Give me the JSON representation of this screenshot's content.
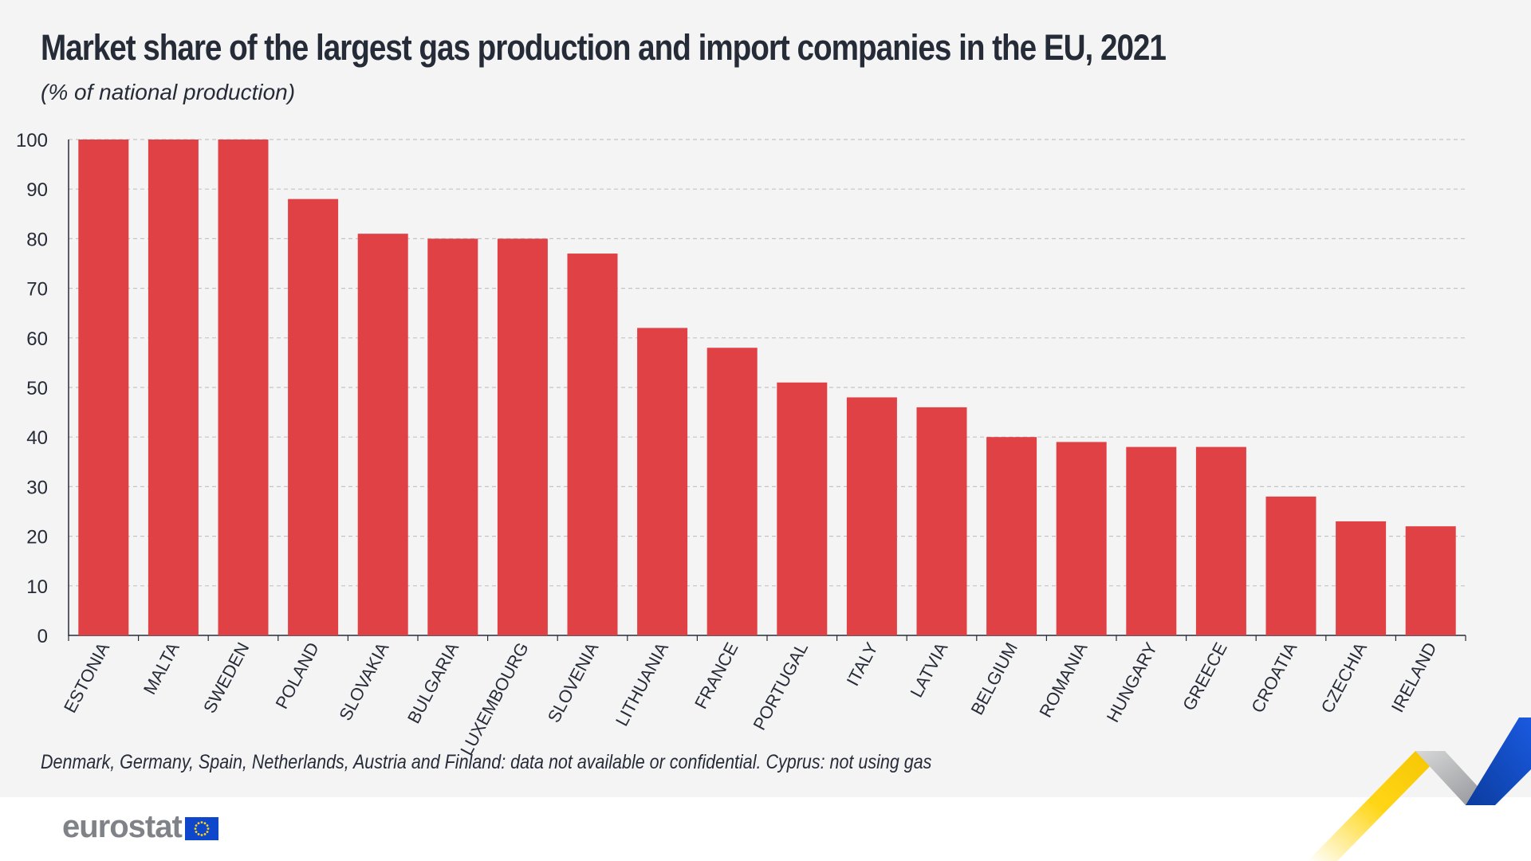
{
  "header": {
    "title": "Market share of the largest gas production and import companies in the EU, 2021",
    "subtitle": "(% of national production)"
  },
  "footnote": "Denmark, Germany, Spain, Netherlands, Austria and Finland: data not available or confidential. Cyprus: not using gas",
  "logo": {
    "text": "eurostat"
  },
  "colors": {
    "bar": "#e04145",
    "background": "#f4f4f4",
    "text": "#262b38",
    "logo_text": "#7f8388",
    "eu_blue": "#0e47cb",
    "eu_yellow": "#ffd617"
  },
  "chart_data": {
    "type": "bar",
    "categories": [
      "ESTONIA",
      "MALTA",
      "SWEDEN",
      "POLAND",
      "SLOVAKIA",
      "BULGARIA",
      "LUXEMBOURG",
      "SLOVENIA",
      "LITHUANIA",
      "FRANCE",
      "PORTUGAL",
      "ITALY",
      "LATVIA",
      "BELGIUM",
      "ROMANIA",
      "HUNGARY",
      "GREECE",
      "CROATIA",
      "CZECHIA",
      "IRELAND"
    ],
    "values": [
      100,
      100,
      100,
      88,
      81,
      80,
      80,
      77,
      62,
      58,
      51,
      48,
      46,
      40,
      39,
      38,
      38,
      28,
      23,
      22
    ],
    "ylim": [
      0,
      100
    ],
    "yticks": [
      "0",
      "10",
      "20",
      "30",
      "40",
      "50",
      "60",
      "70",
      "80",
      "90",
      "100"
    ],
    "grid": true,
    "xlabel": "",
    "ylabel": ""
  }
}
